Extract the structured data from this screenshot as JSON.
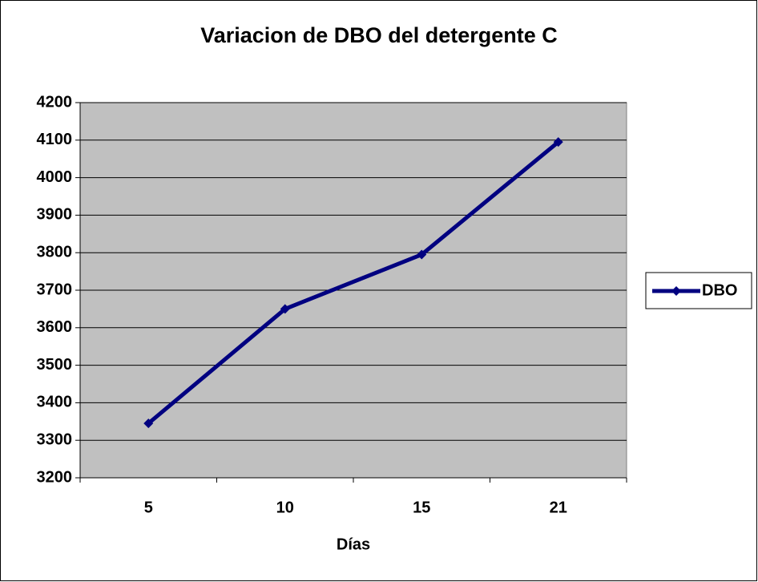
{
  "chart_data": {
    "type": "line",
    "title": "Variacion de DBO del detergente C",
    "x_label": "Días",
    "categories": [
      "5",
      "10",
      "15",
      "21"
    ],
    "series": [
      {
        "name": "DBO",
        "color": "#000080",
        "values": [
          3345,
          3650,
          3795,
          4095
        ]
      }
    ],
    "ylim": [
      3200,
      4200
    ],
    "yticks": [
      3200,
      3300,
      3400,
      3500,
      3600,
      3700,
      3800,
      3900,
      4000,
      4100,
      4200
    ],
    "grid": true,
    "legend": "right"
  }
}
